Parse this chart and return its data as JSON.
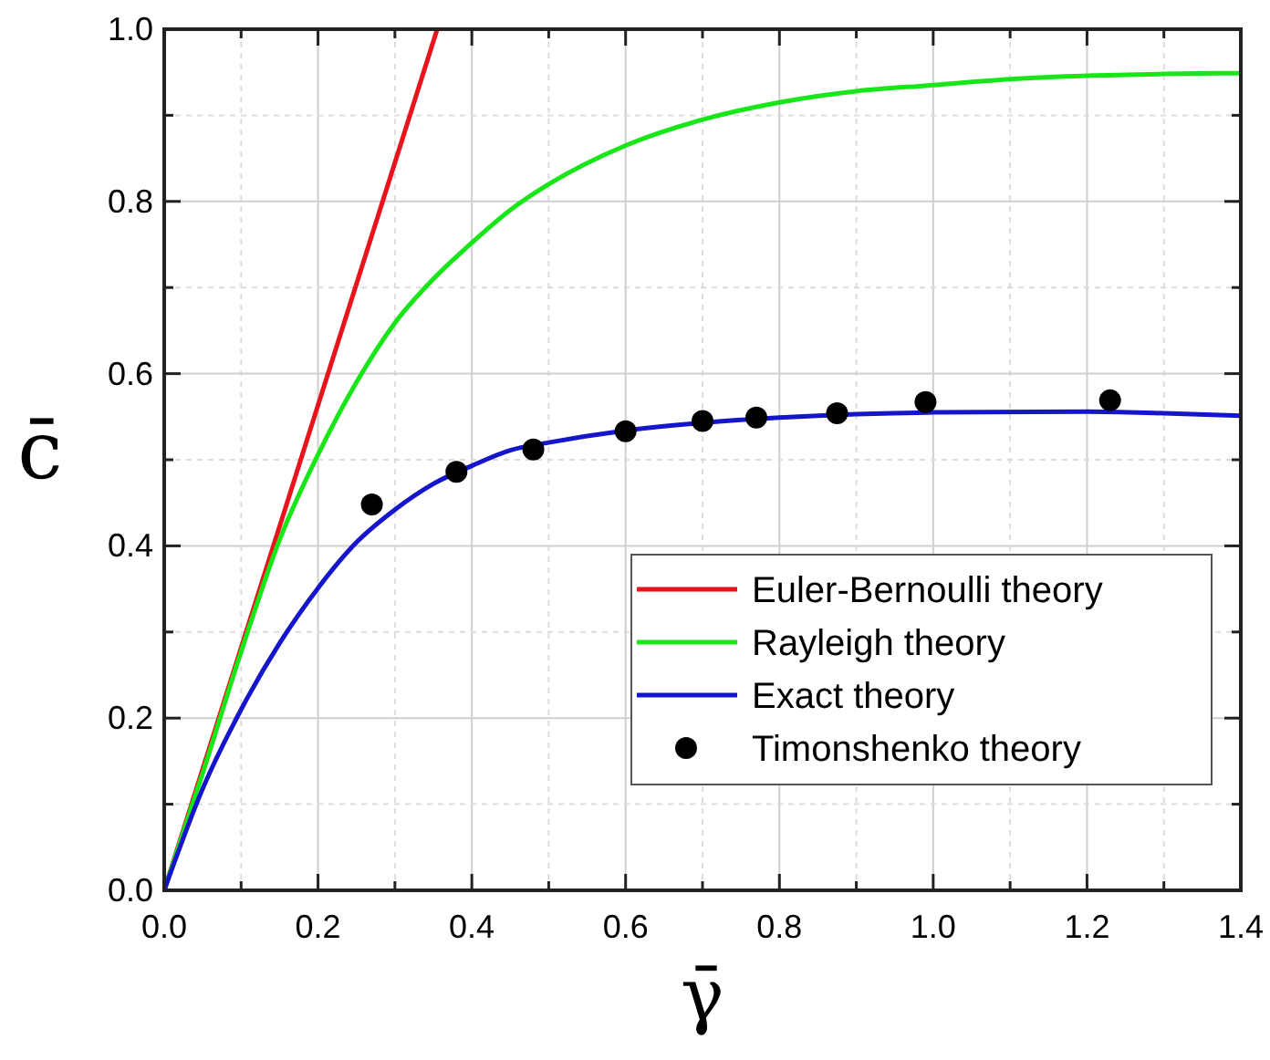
{
  "chart_data": {
    "type": "line",
    "xlabel": "γ̄",
    "ylabel": "c̄",
    "xlim": [
      0,
      1.4
    ],
    "ylim": [
      0,
      1.0
    ],
    "xticks": [
      {
        "value": 0,
        "label": "0.0"
      },
      {
        "value": 0.1,
        "label": null
      },
      {
        "value": 0.2,
        "label": "0.2"
      },
      {
        "value": 0.3,
        "label": null
      },
      {
        "value": 0.4,
        "label": "0.4"
      },
      {
        "value": 0.5,
        "label": null
      },
      {
        "value": 0.6,
        "label": "0.6"
      },
      {
        "value": 0.7,
        "label": null
      },
      {
        "value": 0.8,
        "label": "0.8"
      },
      {
        "value": 0.9,
        "label": null
      },
      {
        "value": 1.0,
        "label": "1.0"
      },
      {
        "value": 1.1,
        "label": null
      },
      {
        "value": 1.2,
        "label": "1.2"
      },
      {
        "value": 1.3,
        "label": null
      },
      {
        "value": 1.4,
        "label": "1.4"
      }
    ],
    "yticks": [
      {
        "value": 0,
        "label": "0.0"
      },
      {
        "value": 0.1,
        "label": null
      },
      {
        "value": 0.2,
        "label": "0.2"
      },
      {
        "value": 0.3,
        "label": null
      },
      {
        "value": 0.4,
        "label": "0.4"
      },
      {
        "value": 0.5,
        "label": null
      },
      {
        "value": 0.6,
        "label": "0.6"
      },
      {
        "value": 0.7,
        "label": null
      },
      {
        "value": 0.8,
        "label": "0.8"
      },
      {
        "value": 0.9,
        "label": null
      },
      {
        "value": 1.0,
        "label": "1.0"
      }
    ],
    "grid": true,
    "legend": "bottom right",
    "line_style": "solid",
    "series": [
      {
        "name": "Euler-Bernoulli theory",
        "color": "#e8131b",
        "x": [
          0,
          0.355
        ],
        "values": [
          0,
          1.0
        ]
      },
      {
        "name": "Rayleigh theory",
        "color": "#19e619",
        "x": [
          0,
          0.05,
          0.1,
          0.15,
          0.2,
          0.25,
          0.3,
          0.35,
          0.4,
          0.45,
          0.5,
          0.6,
          0.7,
          0.8,
          0.9,
          1.0,
          1.1,
          1.2,
          1.3,
          1.4
        ],
        "values": [
          0,
          0.136,
          0.277,
          0.407,
          0.506,
          0.59,
          0.659,
          0.71,
          0.752,
          0.79,
          0.82,
          0.865,
          0.895,
          0.915,
          0.928,
          0.935,
          0.942,
          0.946,
          0.948,
          0.949
        ]
      },
      {
        "name": "Exact theory",
        "color": "#1515cc",
        "x": [
          0,
          0.05,
          0.1,
          0.15,
          0.2,
          0.25,
          0.3,
          0.35,
          0.4,
          0.45,
          0.5,
          0.6,
          0.7,
          0.8,
          0.9,
          1.0,
          1.2,
          1.3,
          1.4
        ],
        "values": [
          0,
          0.118,
          0.21,
          0.287,
          0.351,
          0.404,
          0.442,
          0.472,
          0.493,
          0.511,
          0.52,
          0.534,
          0.543,
          0.549,
          0.553,
          0.555,
          0.556,
          0.554,
          0.551
        ]
      },
      {
        "name": "Timonshenko theory",
        "type": "scatter",
        "marker": "circle",
        "color": "#000000",
        "x": [
          0.27,
          0.38,
          0.48,
          0.6,
          0.7,
          0.77,
          0.875,
          0.99,
          1.23
        ],
        "values": [
          0.448,
          0.486,
          0.512,
          0.533,
          0.545,
          0.549,
          0.554,
          0.567,
          0.569
        ]
      }
    ]
  }
}
